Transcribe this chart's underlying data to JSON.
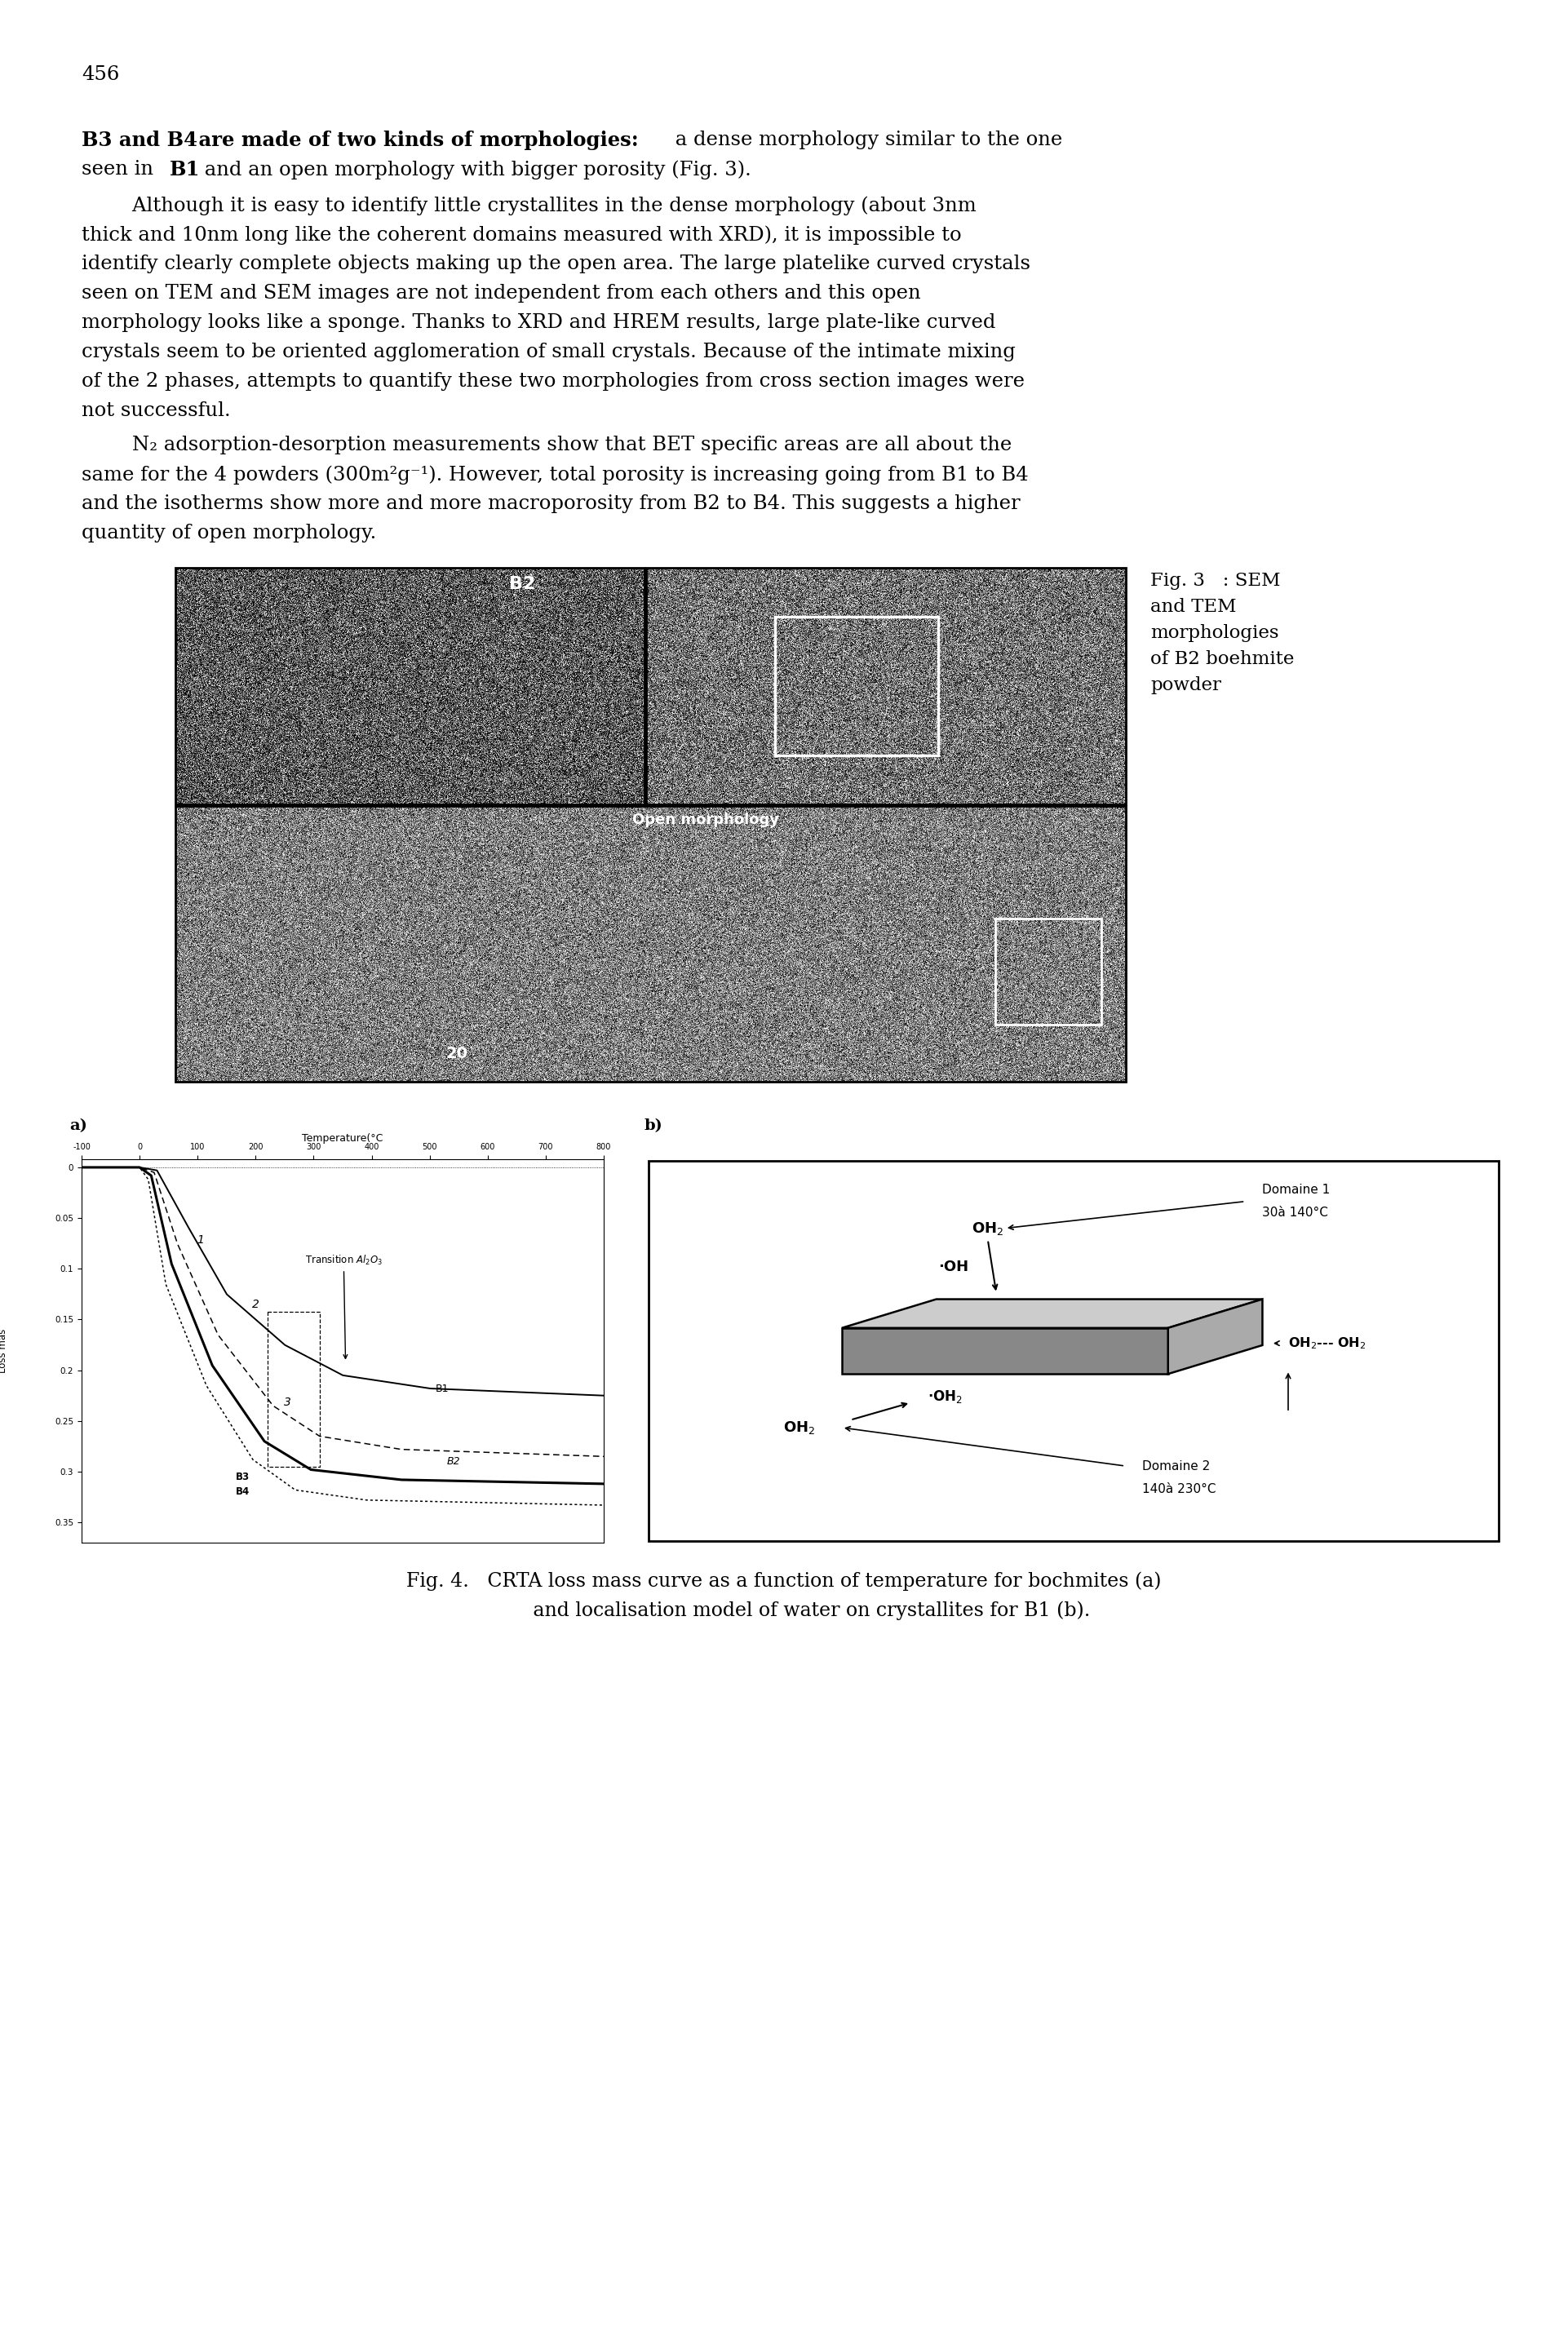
{
  "page_number": "456",
  "fig3_caption_lines": [
    "Fig. 3   : SEM",
    "and TEM",
    "morphologies",
    "of B2 boehmite",
    "powder"
  ],
  "fig4_caption_line1": "Fig. 4.   CRTA loss mass curve as a function of temperature for bochmites (a)",
  "fig4_caption_line2": "and localisation model of water on crystallites for B1 (b).",
  "subplot_a_label": "a)",
  "subplot_b_label": "b)",
  "x_label_a": "Temperature(°C",
  "x_ticks_a_vals": [
    -100,
    0,
    100,
    200,
    300,
    400,
    500,
    600,
    700,
    800
  ],
  "x_ticks_a_labels": [
    "-100",
    "0",
    "100",
    "200",
    "300",
    "400",
    "500",
    "600",
    "700",
    "800"
  ],
  "y_ticks_a": [
    0,
    0.05,
    0.1,
    0.15,
    0.2,
    0.25,
    0.3,
    0.35
  ],
  "y_label_a": "Loss mas",
  "background_color": "#ffffff",
  "text_color": "#000000",
  "domaine1_line1": "Domaine 1",
  "domaine1_line2": "30à 140°C",
  "domaine2_line1": "Domaine 2",
  "domaine2_line2": "140à 230°C",
  "transition_label": "Transition $Al_2O_3$"
}
